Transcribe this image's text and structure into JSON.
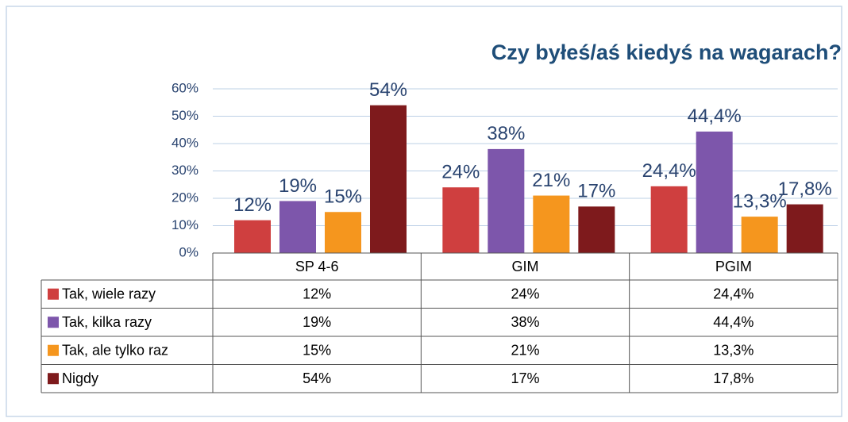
{
  "chart_data": {
    "type": "bar",
    "title": "Czy byłeś/aś kiedyś na wagarach?",
    "categories": [
      "SP 4-6",
      "GIM",
      "PGIM"
    ],
    "series": [
      {
        "name": "Tak, wiele razy",
        "color": "#cf3f3f",
        "values": [
          12,
          24,
          24.4
        ],
        "value_labels": [
          "12%",
          "24%",
          "24,4%"
        ]
      },
      {
        "name": "Tak, kilka razy",
        "color": "#7d56ab",
        "values": [
          19,
          38,
          44.4
        ],
        "value_labels": [
          "19%",
          "38%",
          "44,4%"
        ]
      },
      {
        "name": "Tak, ale tylko raz",
        "color": "#f5961e",
        "values": [
          15,
          21,
          13.3
        ],
        "value_labels": [
          "15%",
          "21%",
          "13,3%"
        ]
      },
      {
        "name": "Nigdy",
        "color": "#7e1a1c",
        "values": [
          54,
          17,
          17.8
        ],
        "value_labels": [
          "54%",
          "17%",
          "17,8%"
        ]
      }
    ],
    "ylim": [
      0,
      60
    ],
    "yticks": [
      {
        "value": 0,
        "label": "0%"
      },
      {
        "value": 10,
        "label": "10%"
      },
      {
        "value": 20,
        "label": "20%"
      },
      {
        "value": 30,
        "label": "30%"
      },
      {
        "value": 40,
        "label": "40%"
      },
      {
        "value": 50,
        "label": "50%"
      },
      {
        "value": 60,
        "label": "60%"
      }
    ],
    "grid": true
  }
}
